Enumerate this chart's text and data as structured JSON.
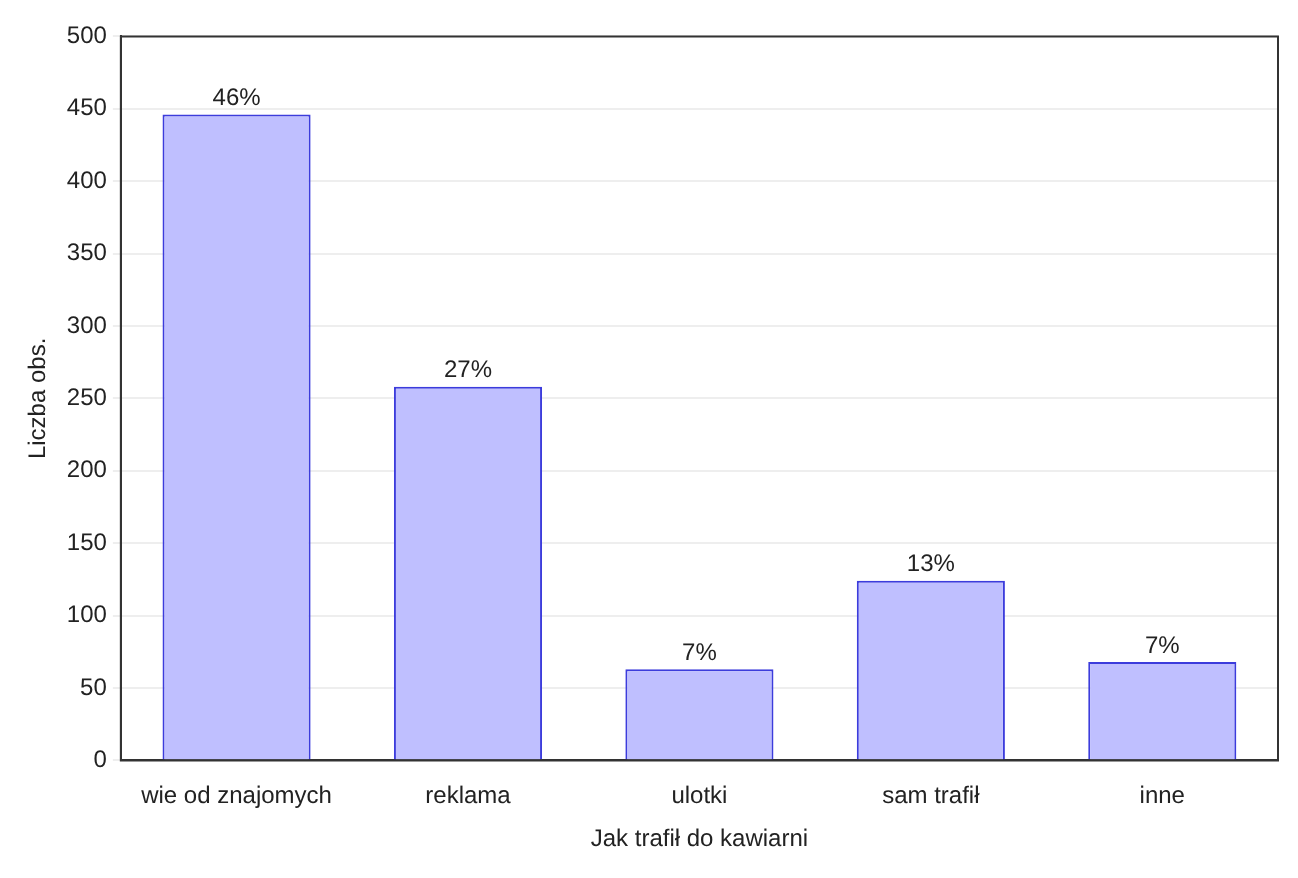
{
  "chart_data": {
    "type": "bar",
    "xlabel": "Jak trafił do kawiarni",
    "ylabel": "Liczba obs.",
    "categories": [
      "wie od znajomych",
      "reklama",
      "ulotki",
      "sam trafił",
      "inne"
    ],
    "series": [
      {
        "color": "#bfbfff",
        "values": [
          446,
          258,
          63,
          124,
          68
        ]
      }
    ],
    "annotations": [
      {
        "text": "46%",
        "x": "wie od znajomych",
        "y": 446
      },
      {
        "text": "27%",
        "x": "reklama",
        "y": 258
      },
      {
        "text": "7%",
        "x": "ulotki",
        "y": 63
      },
      {
        "text": "13%",
        "x": "sam trafił",
        "y": 124
      },
      {
        "text": "7%",
        "x": "inne",
        "y": 68
      }
    ],
    "ylim": [
      0,
      500
    ],
    "yticks": [
      0,
      50,
      100,
      150,
      200,
      250,
      300,
      350,
      400,
      450,
      500
    ],
    "grid": "y",
    "legend": false
  }
}
